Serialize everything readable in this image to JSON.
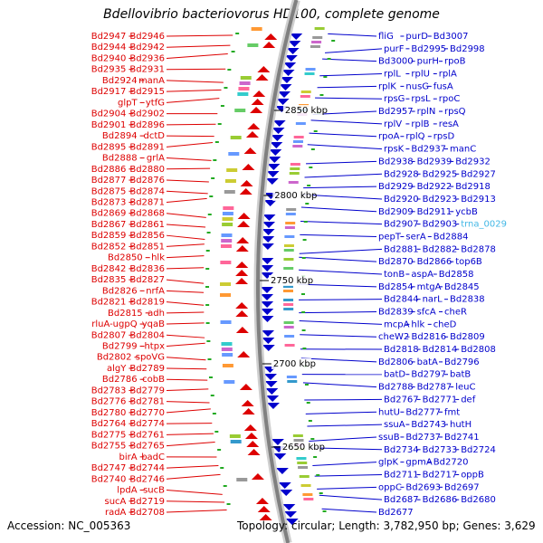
{
  "title": "Bdellovibrio bacteriovorus HD100, complete genome",
  "footer": {
    "accession": "Accession: NC_005363",
    "summary": "Topology: circular; Length: 3,782,950 bp; Genes: 3,629"
  },
  "colors": {
    "forward": "#dd0000",
    "reverse": "#0000cc",
    "trna": "#44b8e6",
    "backbone": "#808080"
  },
  "scale_ticks": [
    {
      "label": "2850 kbp"
    },
    {
      "label": "2800 kbp"
    },
    {
      "label": "2750 kbp"
    },
    {
      "label": "2700 kbp"
    },
    {
      "label": "2650 kbp"
    }
  ],
  "left_labels": [
    "Bd2947",
    "Bd2946",
    "Bd2944",
    "Bd2942",
    "Bd2940",
    "Bd2936",
    "Bd2935",
    "Bd2931",
    "Bd2924",
    "manA",
    "Bd2917",
    "Bd2915",
    "glpT",
    "ytfG",
    "Bd2904",
    "Bd2902",
    "Bd2901",
    "Bd2896",
    "Bd2894",
    "dctD",
    "Bd2895",
    "Bd2891",
    "Bd2888",
    "grlA",
    "Bd2886",
    "Bd2880",
    "Bd2877",
    "Bd2876",
    "Bd2875",
    "Bd2874",
    "Bd2873",
    "Bd2871",
    "Bd2869",
    "Bd2868",
    "Bd2867",
    "Bd2861",
    "Bd2859",
    "Bd2856",
    "Bd2852",
    "Bd2851",
    "Bd2850",
    "hlk",
    "Bd2842",
    "Bd2836",
    "Bd2835",
    "Bd2827",
    "Bd2826",
    "nrfA",
    "Bd2821",
    "Bd2819",
    "Bd2815",
    "adh",
    "rluA-ugpQ",
    "yqaB",
    "Bd2807",
    "Bd2804",
    "Bd2799",
    "htpx",
    "Bd2802",
    "spoVG",
    "algY",
    "Bd2789",
    "Bd2786",
    "cobB",
    "Bd2783",
    "Bd2779",
    "Bd2776",
    "Bd2781",
    "Bd2780",
    "Bd2770",
    "Bd2764",
    "Bd2774",
    "Bd2775",
    "Bd2761",
    "Bd2755",
    "Bd2765",
    "birA",
    "badC",
    "Bd2747",
    "Bd2744",
    "Bd2740",
    "Bd2746",
    "lpdA",
    "sucB",
    "sucA",
    "Bd2719",
    "radA",
    "Bd2708"
  ],
  "right_labels": [
    "fliG",
    "purD",
    "Bd3007",
    "purF",
    "Bd2995",
    "Bd2998",
    "Bd3000",
    "purH",
    "rpoB",
    "rplL",
    "rplU",
    "rplA",
    "rplK",
    "nusG",
    "fusA",
    "rpsG",
    "rpsL",
    "rpoC",
    "Bd2957",
    "rplN",
    "rpsQ",
    "rplV",
    "rplB",
    "resA",
    "rpoA",
    "rplQ",
    "rpsD",
    "rpsK",
    "Bd2937",
    "manC",
    "Bd2938",
    "Bd2939",
    "Bd2932",
    "Bd2928",
    "Bd2925",
    "Bd2927",
    "Bd2929",
    "Bd2922",
    "Bd2918",
    "Bd2920",
    "Bd2923",
    "Bd2913",
    "Bd2909",
    "Bd2911",
    "ycbB",
    "Bd2907",
    "Bd2903",
    "trna_0029",
    "pepT",
    "serA",
    "Bd2884",
    "Bd2881",
    "Bd2882",
    "Bd2878",
    "Bd2870",
    "Bd2866",
    "top6B",
    "tonB",
    "aspA",
    "Bd2858",
    "Bd2854",
    "mtgA",
    "Bd2845",
    "Bd2844",
    "narL",
    "Bd2838",
    "Bd2839",
    "sfcA",
    "cheR",
    "mcpA",
    "hlk",
    "cheD",
    "cheW2",
    "Bd2816",
    "Bd2809",
    "Bd2818",
    "Bd2814",
    "Bd2808",
    "Bd2806",
    "batA",
    "Bd2796",
    "batD",
    "Bd2797",
    "batB",
    "Bd2788",
    "Bd2787",
    "leuC",
    "Bd2767",
    "Bd2771",
    "def",
    "hutU",
    "Bd2777",
    "fmt",
    "ssuA",
    "Bd2743",
    "hutH",
    "ssuB",
    "Bd2737",
    "Bd2741",
    "Bd2734",
    "Bd2733",
    "Bd2724",
    "glpK",
    "gpmA",
    "Bd2720",
    "Bd2711",
    "Bd2717",
    "oppB",
    "oppC",
    "Bd2693",
    "Bd2697",
    "Bd2687",
    "Bd2686",
    "Bd2680",
    "Bd2677"
  ]
}
